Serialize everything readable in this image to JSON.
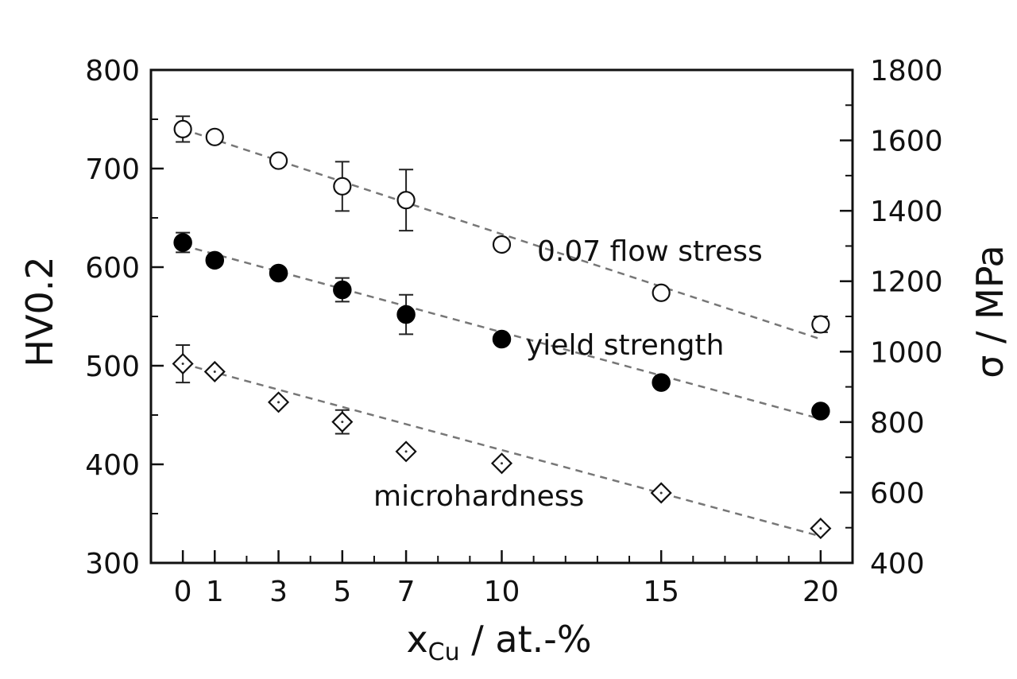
{
  "chart_data": {
    "type": "scatter",
    "xlabel_main": "x",
    "xlabel_sub": "Cu",
    "xlabel_rest": " / at.-%",
    "ylabel_left": "HV0.2",
    "ylabel_right": "σ / MPa",
    "grid": false,
    "x_ticks": [
      0,
      1,
      3,
      5,
      7,
      10,
      15,
      20
    ],
    "xlim": [
      -1,
      21
    ],
    "y_left": {
      "range": [
        300,
        800
      ],
      "ticks": [
        300,
        400,
        500,
        600,
        700,
        800
      ]
    },
    "y_right": {
      "range": [
        400,
        1800
      ],
      "ticks": [
        400,
        600,
        800,
        1000,
        1200,
        1400,
        1600,
        1800
      ]
    },
    "series": [
      {
        "name": "0.07 flow stress",
        "marker": "open-circle",
        "axis": "left",
        "x": [
          0,
          1,
          3,
          5,
          7,
          10,
          15,
          20
        ],
        "y": [
          740,
          732,
          708,
          682,
          668,
          623,
          574,
          542
        ],
        "err": [
          13,
          0,
          0,
          25,
          31,
          0,
          0,
          8
        ],
        "fit": [
          [
            0,
            740
          ],
          [
            20,
            527
          ]
        ]
      },
      {
        "name": "yield strength",
        "marker": "filled-circle",
        "axis": "left",
        "x": [
          0,
          1,
          3,
          5,
          7,
          10,
          15,
          20
        ],
        "y": [
          625,
          607,
          594,
          577,
          552,
          527,
          483,
          454
        ],
        "err": [
          10,
          0,
          0,
          12,
          20,
          0,
          0,
          0
        ],
        "fit": [
          [
            0,
            622
          ],
          [
            20,
            446
          ]
        ]
      },
      {
        "name": "microhardness",
        "marker": "open-diamond",
        "axis": "left",
        "x": [
          0,
          1,
          3,
          5,
          7,
          10,
          15,
          20
        ],
        "y": [
          502,
          494,
          463,
          443,
          413,
          401,
          371,
          335
        ],
        "err": [
          19,
          0,
          0,
          12,
          0,
          0,
          0,
          0
        ],
        "fit": [
          [
            0,
            502
          ],
          [
            20,
            327
          ]
        ]
      }
    ]
  }
}
